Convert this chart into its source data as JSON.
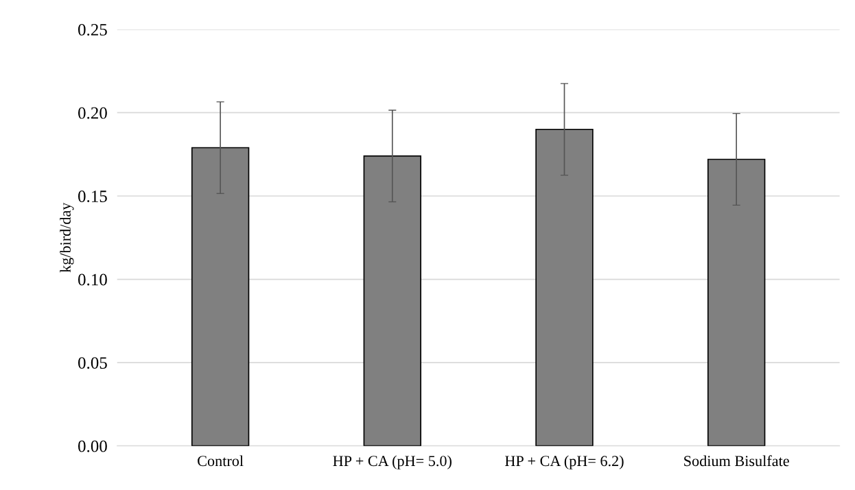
{
  "chart_data": {
    "type": "bar",
    "ylabel": "kg/bird/day",
    "categories": [
      "Control",
      "HP + CA (pH= 5.0)",
      "HP + CA (pH= 6.2)",
      "Sodium Bisulfate"
    ],
    "values": [
      0.179,
      0.174,
      0.19,
      0.172
    ],
    "errors": [
      0.0275,
      0.0275,
      0.0275,
      0.0275
    ],
    "color": "#808080",
    "ylim": [
      0,
      0.25
    ],
    "yticks": [
      {
        "value": 0,
        "label": "0.00"
      },
      {
        "value": 0.05,
        "label": "0.05"
      },
      {
        "value": 0.1,
        "label": "0.10"
      },
      {
        "value": 0.15,
        "label": "0.15"
      },
      {
        "value": 0.2,
        "label": "0.20"
      },
      {
        "value": 0.25,
        "label": "0.25"
      }
    ],
    "grid": "y"
  }
}
